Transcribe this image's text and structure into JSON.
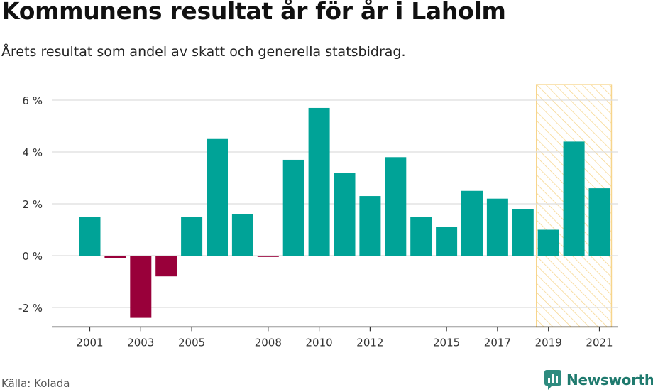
{
  "title": "Kommunens resultat år för år i Laholm",
  "subtitle": "Årets resultat som andel av skatt och generella statsbidrag.",
  "source": "Källa: Kolada",
  "brand": {
    "name": "Newsworthy",
    "icon": "newsworthy-logo-icon"
  },
  "colors": {
    "positive": "#00a397",
    "negative": "#99003a",
    "highlight": "#f7d58b",
    "grid": "#dddddd",
    "axis": "#333333"
  },
  "chart_data": {
    "type": "bar",
    "categories": [
      "2001",
      "2002",
      "2003",
      "2004",
      "2005",
      "2006",
      "2007",
      "2008",
      "2009",
      "2010",
      "2011",
      "2012",
      "2013",
      "2014",
      "2015",
      "2016",
      "2017",
      "2018",
      "2019",
      "2020",
      "2021"
    ],
    "values": [
      1.5,
      -0.1,
      -2.4,
      -0.8,
      1.5,
      4.5,
      1.6,
      -0.05,
      3.7,
      5.7,
      3.2,
      2.3,
      3.8,
      1.5,
      1.1,
      2.5,
      2.2,
      1.8,
      1.0,
      4.4,
      2.6
    ],
    "xtick_labels": [
      "2001",
      "2003",
      "2005",
      "2008",
      "2010",
      "2012",
      "2015",
      "2017",
      "2019",
      "2021"
    ],
    "ytick_values": [
      -2,
      0,
      2,
      4,
      6
    ],
    "ytick_labels": [
      "-2 %",
      "0 %",
      "2 %",
      "4 %",
      "6 %"
    ],
    "ylim": [
      -2.75,
      6.6
    ],
    "highlight_range": [
      "2019",
      "2021"
    ],
    "grid": true,
    "legend": "none"
  }
}
